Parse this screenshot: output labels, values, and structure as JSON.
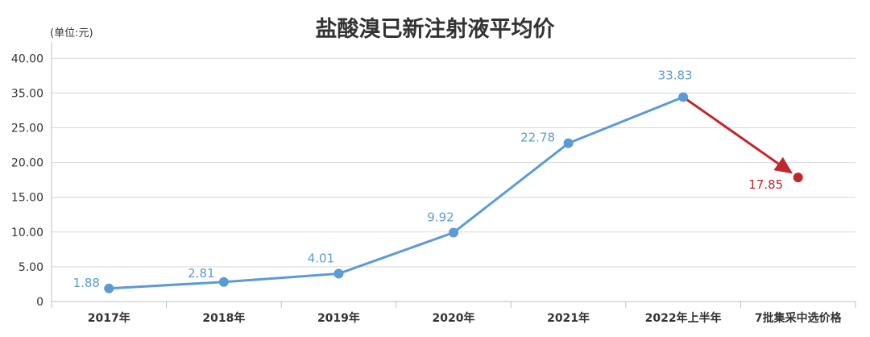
{
  "colors": {
    "main": "#5b9bd5",
    "highlight": "#c0272d",
    "grid": "#d9d9d9",
    "text": "#333333"
  },
  "chart_data": {
    "type": "line",
    "title": "盐酸溴已新注射液平均价",
    "unit": "(单位:元)",
    "categories": [
      "2017年",
      "2018年",
      "2019年",
      "2020年",
      "2021年",
      "2022年上半年",
      "7批集采中选价格"
    ],
    "yticks": [
      "0",
      "5.00",
      "10.00",
      "15.00",
      "20.00",
      "25.00",
      "35.00",
      "40.00"
    ],
    "series": [
      {
        "values": [
          1.88,
          2.81,
          4.01,
          9.92,
          22.78,
          33.83,
          null
        ],
        "color": "#5b9bd5"
      },
      {
        "values": [
          null,
          null,
          null,
          null,
          null,
          33.83,
          17.85
        ],
        "color": "#c0272d"
      }
    ],
    "data_labels": [
      "1.88",
      "2.81",
      "4.01",
      "9.92",
      "22.78",
      "33.83",
      "17.85"
    ],
    "ylim": [
      0,
      40
    ],
    "grid": true,
    "legend": "none"
  }
}
